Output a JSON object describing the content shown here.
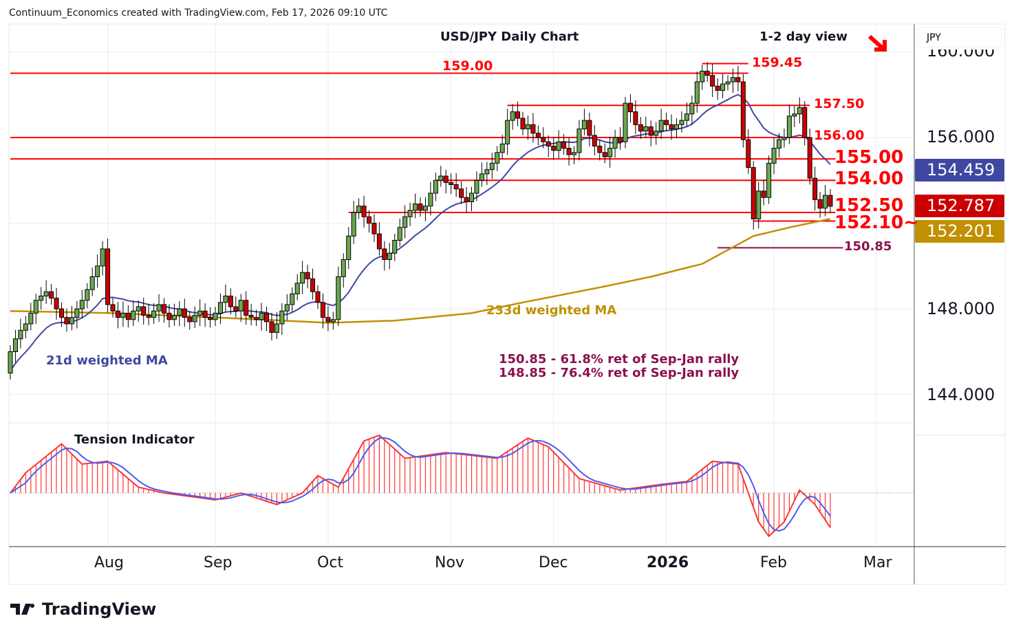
{
  "header": {
    "attribution": "Continuum_Economics created with TradingView.com, Feb 17, 2026 09:10 UTC",
    "currency": "JPY",
    "logo": "TradingView"
  },
  "chart_data": {
    "type": "candlestick",
    "title": "USD/JPY Daily Chart",
    "subtitle": "1-2 day view",
    "outlook_icon": "down-right-arrow",
    "ylim": [
      142.6,
      161.2
    ],
    "y_ticks": [
      "160.000",
      "156.000",
      "148.000",
      "144.000"
    ],
    "y_tick_values": [
      160,
      156,
      148,
      144
    ],
    "x_ticks": [
      {
        "label": "Aug",
        "index": 19
      },
      {
        "label": "Sep",
        "index": 40
      },
      {
        "label": "Oct",
        "index": 62
      },
      {
        "label": "Nov",
        "index": 86
      },
      {
        "label": "Dec",
        "index": 106
      },
      {
        "label": "2026",
        "index": 128
      },
      {
        "label": "Feb",
        "index": 149
      },
      {
        "label": "Mar",
        "index": 169
      }
    ],
    "first_open": 145.0,
    "closes": [
      146.0,
      146.6,
      147.0,
      147.3,
      147.8,
      148.4,
      148.6,
      148.8,
      148.5,
      148.0,
      147.6,
      147.3,
      147.6,
      148.0,
      148.4,
      148.9,
      149.5,
      150.0,
      150.8,
      148.2,
      147.9,
      147.6,
      147.8,
      147.5,
      147.9,
      148.1,
      147.7,
      147.6,
      147.9,
      148.2,
      147.8,
      147.5,
      147.7,
      148.0,
      147.6,
      147.4,
      147.7,
      147.9,
      147.6,
      147.5,
      147.8,
      148.3,
      148.6,
      148.1,
      147.9,
      148.4,
      147.7,
      147.6,
      147.5,
      147.8,
      147.4,
      146.9,
      147.3,
      147.9,
      148.2,
      148.7,
      149.2,
      149.7,
      149.4,
      148.8,
      148.3,
      147.6,
      147.4,
      147.5,
      149.5,
      150.3,
      151.4,
      152.5,
      152.8,
      152.3,
      152.0,
      151.5,
      150.8,
      150.3,
      150.6,
      151.2,
      151.8,
      152.3,
      152.6,
      152.9,
      152.6,
      152.8,
      153.4,
      154.0,
      154.2,
      153.9,
      153.8,
      153.6,
      153.2,
      153.0,
      153.4,
      154.0,
      154.3,
      154.5,
      154.8,
      155.3,
      155.7,
      156.8,
      157.2,
      156.9,
      156.4,
      156.6,
      156.2,
      156.0,
      155.8,
      155.6,
      155.4,
      155.8,
      155.5,
      155.2,
      155.3,
      156.4,
      156.8,
      156.1,
      155.6,
      155.3,
      155.1,
      155.5,
      156.0,
      155.8,
      157.6,
      157.2,
      156.6,
      156.3,
      156.5,
      156.1,
      156.3,
      156.8,
      156.6,
      156.4,
      156.6,
      156.8,
      157.1,
      157.6,
      158.6,
      159.1,
      158.9,
      158.4,
      158.2,
      158.5,
      158.6,
      158.8,
      158.6,
      155.9,
      154.6,
      152.2,
      153.5,
      153.2,
      154.8,
      155.5,
      155.9,
      156.0,
      157.0,
      157.1,
      157.4,
      156.0,
      154.1,
      153.1,
      152.7,
      153.3,
      152.79
    ],
    "ma_21_label": "21d weighted MA",
    "ma_233_label": "233d weighted MA",
    "ma_233": [
      [
        0,
        147.9
      ],
      [
        20,
        147.8
      ],
      [
        40,
        147.6
      ],
      [
        62,
        147.35
      ],
      [
        75,
        147.45
      ],
      [
        90,
        147.8
      ],
      [
        100,
        148.3
      ],
      [
        115,
        149.0
      ],
      [
        125,
        149.5
      ],
      [
        135,
        150.1
      ],
      [
        145,
        151.4
      ],
      [
        152,
        151.8
      ],
      [
        160,
        152.201
      ]
    ],
    "levels": [
      {
        "label": "159.45",
        "value": 159.45,
        "color": "#ff0000",
        "from": 135,
        "to": 144
      },
      {
        "label": "159.00",
        "value": 159.0,
        "color": "#ff0000",
        "from": 0,
        "to": 144
      },
      {
        "label": "157.50",
        "value": 157.5,
        "color": "#ff0000",
        "from": 97,
        "to": 156
      },
      {
        "label": "156.00",
        "value": 156.0,
        "color": "#ff0000",
        "from": 0,
        "to": 156
      },
      {
        "label": "155.00",
        "value": 155.0,
        "color": "#ff0000",
        "from": 0,
        "to": 161
      },
      {
        "label": "154.00",
        "value": 154.0,
        "color": "#ff0000",
        "from": 83,
        "to": 161
      },
      {
        "label": "152.50",
        "value": 152.5,
        "color": "#ff0000",
        "from": 66,
        "to": 161
      },
      {
        "label": "152.10~",
        "value": 152.1,
        "color": "#ff0000",
        "from": 145,
        "to": 161
      },
      {
        "label": "150.85",
        "value": 150.85,
        "color": "#8a1050",
        "from": 138,
        "to": 162.5
      }
    ],
    "notes": [
      "150.85 - 61.8% ret of Sep-Jan rally",
      "148.85 - 76.4% ret of Sep-Jan rally"
    ],
    "last_values": {
      "ma_21": "154.459",
      "close": "152.787",
      "ma_233": "152.201"
    },
    "colors": {
      "up": "#6aa84f",
      "down": "#cc0000",
      "ma_21": "#3f48a0",
      "ma_233": "#c09000",
      "tension_bar": "#ff3333",
      "tension_line": "#4a5cf0"
    },
    "tension": {
      "label": "Tension Indicator",
      "anchors": [
        [
          0,
          0
        ],
        [
          3,
          0.35
        ],
        [
          10,
          0.85
        ],
        [
          14,
          0.5
        ],
        [
          19,
          0.55
        ],
        [
          25,
          0.1
        ],
        [
          30,
          0
        ],
        [
          40,
          -0.12
        ],
        [
          45,
          0.0
        ],
        [
          52,
          -0.2
        ],
        [
          57,
          0
        ],
        [
          60,
          0.3
        ],
        [
          64,
          0.1
        ],
        [
          69,
          0.9
        ],
        [
          72,
          1.0
        ],
        [
          77,
          0.6
        ],
        [
          85,
          0.7
        ],
        [
          95,
          0.6
        ],
        [
          101,
          0.95
        ],
        [
          105,
          0.8
        ],
        [
          111,
          0.25
        ],
        [
          119,
          0.05
        ],
        [
          127,
          0.15
        ],
        [
          132,
          0.2
        ],
        [
          137,
          0.55
        ],
        [
          142,
          0.5
        ],
        [
          146,
          -0.5
        ],
        [
          148,
          -0.75
        ],
        [
          151,
          -0.5
        ],
        [
          154,
          0.05
        ],
        [
          157,
          -0.2
        ],
        [
          160,
          -0.6
        ]
      ]
    }
  }
}
